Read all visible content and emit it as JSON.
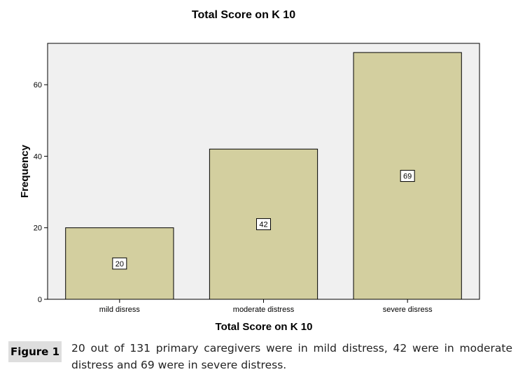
{
  "chart_data": {
    "type": "bar",
    "title": "Total Score on K 10",
    "xlabel": "Total Score on K 10",
    "ylabel": "Frequency",
    "categories": [
      "mild disress",
      "moderate  distress",
      "severe disress"
    ],
    "values": [
      20,
      42,
      69
    ],
    "ylim": [
      0,
      70
    ],
    "yticks": [
      0,
      20,
      40,
      60
    ],
    "grid": false,
    "legend": "none",
    "colors": {
      "bar_fill": "#d3cf9f",
      "plot_background": "#f0f0f0",
      "bar_stroke": "#000000"
    }
  },
  "caption": {
    "label": "Figure 1",
    "text": "20 out of 131 primary caregivers were in mild distress, 42 were in moderate distress and 69 were in severe distress."
  }
}
